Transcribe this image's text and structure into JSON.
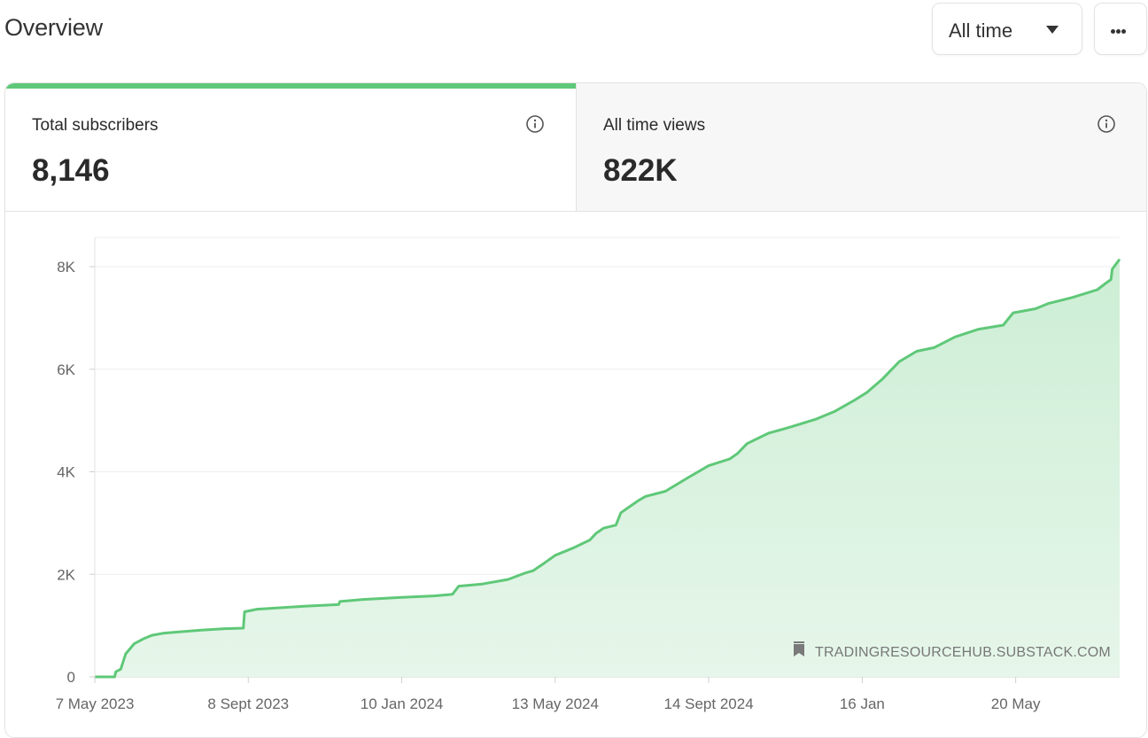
{
  "header": {
    "title": "Overview",
    "range_label": "All time"
  },
  "tabs": [
    {
      "label": "Total subscribers",
      "value": "8,146",
      "active": true
    },
    {
      "label": "All time views",
      "value": "822K",
      "active": false
    }
  ],
  "colors": {
    "accent": "#5fc878",
    "fill": "#d8f2de"
  },
  "chart_data": {
    "type": "area",
    "title": "",
    "xlabel": "",
    "ylabel": "",
    "ylim": [
      0,
      8600
    ],
    "y_ticks": [
      {
        "value": 0,
        "label": "0"
      },
      {
        "value": 2000,
        "label": "2K"
      },
      {
        "value": 4000,
        "label": "4K"
      },
      {
        "value": 6000,
        "label": "6K"
      },
      {
        "value": 8000,
        "label": "8K"
      }
    ],
    "x_range": [
      "2023-05-07",
      "2025-08-12"
    ],
    "x_ticks": [
      {
        "date": "2023-05-07",
        "label": "7 May 2023"
      },
      {
        "date": "2023-09-08",
        "label": "8 Sept 2023"
      },
      {
        "date": "2024-01-10",
        "label": "10 Jan 2024"
      },
      {
        "date": "2024-05-13",
        "label": "13 May 2024"
      },
      {
        "date": "2024-09-14",
        "label": "14 Sept 2024"
      },
      {
        "date": "2025-01-16",
        "label": "16 Jan"
      },
      {
        "date": "2025-05-20",
        "label": "20 May"
      }
    ],
    "series": [
      {
        "points": [
          [
            "2023-05-07",
            0
          ],
          [
            "2023-05-23",
            0
          ],
          [
            "2023-05-24",
            100
          ],
          [
            "2023-05-28",
            150
          ],
          [
            "2023-06-01",
            450
          ],
          [
            "2023-06-08",
            650
          ],
          [
            "2023-06-16",
            750
          ],
          [
            "2023-06-22",
            810
          ],
          [
            "2023-07-01",
            850
          ],
          [
            "2023-07-15",
            880
          ],
          [
            "2023-08-01",
            910
          ],
          [
            "2023-08-20",
            940
          ],
          [
            "2023-09-04",
            950
          ],
          [
            "2023-09-05",
            1270
          ],
          [
            "2023-09-15",
            1320
          ],
          [
            "2023-10-05",
            1350
          ],
          [
            "2023-10-25",
            1380
          ],
          [
            "2023-11-20",
            1410
          ],
          [
            "2023-11-21",
            1470
          ],
          [
            "2023-12-10",
            1510
          ],
          [
            "2024-01-10",
            1550
          ],
          [
            "2024-02-05",
            1580
          ],
          [
            "2024-02-20",
            1610
          ],
          [
            "2024-02-25",
            1770
          ],
          [
            "2024-03-15",
            1810
          ],
          [
            "2024-04-05",
            1900
          ],
          [
            "2024-04-18",
            2020
          ],
          [
            "2024-04-25",
            2070
          ],
          [
            "2024-05-03",
            2200
          ],
          [
            "2024-05-13",
            2370
          ],
          [
            "2024-05-28",
            2520
          ],
          [
            "2024-06-10",
            2670
          ],
          [
            "2024-06-15",
            2800
          ],
          [
            "2024-06-21",
            2900
          ],
          [
            "2024-07-01",
            2960
          ],
          [
            "2024-07-05",
            3200
          ],
          [
            "2024-07-12",
            3320
          ],
          [
            "2024-07-20",
            3450
          ],
          [
            "2024-07-25",
            3520
          ],
          [
            "2024-08-10",
            3620
          ],
          [
            "2024-08-28",
            3880
          ],
          [
            "2024-09-14",
            4120
          ],
          [
            "2024-10-01",
            4250
          ],
          [
            "2024-10-07",
            4350
          ],
          [
            "2024-10-15",
            4550
          ],
          [
            "2024-11-01",
            4750
          ],
          [
            "2024-11-20",
            4880
          ],
          [
            "2024-12-10",
            5030
          ],
          [
            "2024-12-25",
            5180
          ],
          [
            "2025-01-10",
            5400
          ],
          [
            "2025-01-20",
            5550
          ],
          [
            "2025-02-01",
            5800
          ],
          [
            "2025-02-15",
            6150
          ],
          [
            "2025-03-01",
            6350
          ],
          [
            "2025-03-15",
            6420
          ],
          [
            "2025-04-01",
            6630
          ],
          [
            "2025-04-20",
            6780
          ],
          [
            "2025-05-10",
            6860
          ],
          [
            "2025-05-18",
            7100
          ],
          [
            "2025-06-05",
            7180
          ],
          [
            "2025-06-15",
            7280
          ],
          [
            "2025-07-05",
            7400
          ],
          [
            "2025-07-25",
            7550
          ],
          [
            "2025-08-01",
            7680
          ],
          [
            "2025-08-05",
            7750
          ],
          [
            "2025-08-06",
            7950
          ],
          [
            "2025-08-09",
            8050
          ],
          [
            "2025-08-12",
            8146
          ]
        ]
      }
    ],
    "grid": true,
    "watermark": "TRADINGRESOURCEHUB.SUBSTACK.COM"
  }
}
